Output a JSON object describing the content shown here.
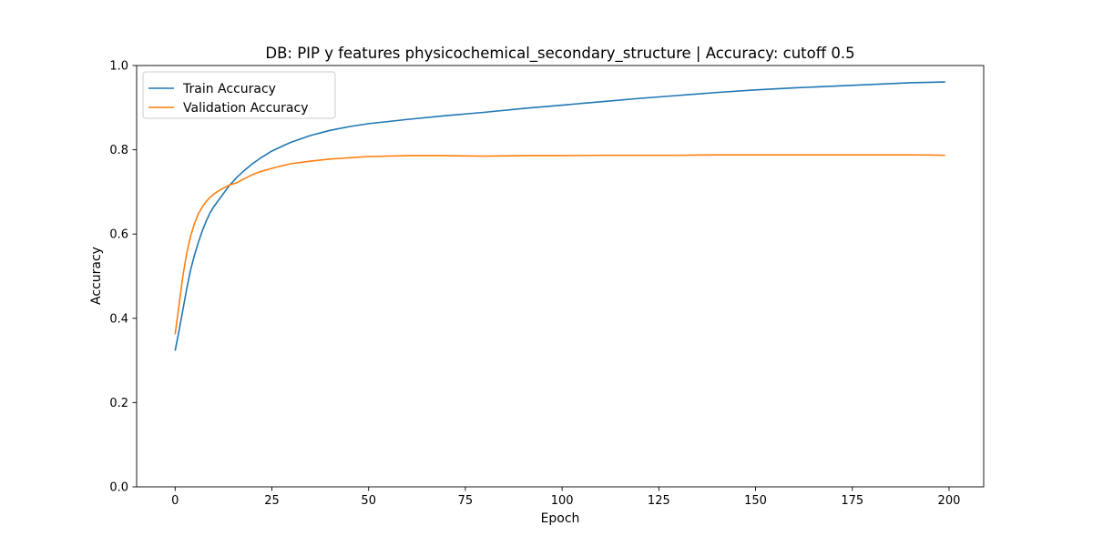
{
  "chart_data": {
    "type": "line",
    "title": "DB: PIP y features physicochemical_secondary_structure | Accuracy: cutoff 0.5",
    "xlabel": "Epoch",
    "ylabel": "Accuracy",
    "xlim": [
      -9.95,
      208.95
    ],
    "ylim": [
      0.0,
      1.0
    ],
    "xticks": [
      0,
      25,
      50,
      75,
      100,
      125,
      150,
      175,
      200
    ],
    "yticks": [
      0.0,
      0.2,
      0.4,
      0.6,
      0.8,
      1.0
    ],
    "xtick_labels": [
      "0",
      "25",
      "50",
      "75",
      "100",
      "125",
      "150",
      "175",
      "200"
    ],
    "ytick_labels": [
      "0.0",
      "0.2",
      "0.4",
      "0.6",
      "0.8",
      "1.0"
    ],
    "grid": false,
    "legend_position": "top-left",
    "series": [
      {
        "name": "Train Accuracy",
        "color": "#1f77b4",
        "x": [
          0,
          1,
          2,
          3,
          4,
          5,
          6,
          7,
          8,
          9,
          10,
          12,
          14,
          16,
          18,
          20,
          22,
          25,
          28,
          30,
          35,
          40,
          45,
          50,
          60,
          70,
          80,
          90,
          100,
          110,
          120,
          130,
          140,
          150,
          160,
          170,
          180,
          190,
          199
        ],
        "y": [
          0.323,
          0.37,
          0.42,
          0.47,
          0.515,
          0.55,
          0.58,
          0.607,
          0.63,
          0.65,
          0.665,
          0.69,
          0.715,
          0.735,
          0.752,
          0.767,
          0.78,
          0.797,
          0.81,
          0.818,
          0.834,
          0.846,
          0.855,
          0.862,
          0.872,
          0.881,
          0.889,
          0.898,
          0.906,
          0.914,
          0.922,
          0.929,
          0.936,
          0.942,
          0.947,
          0.951,
          0.955,
          0.959,
          0.961
        ]
      },
      {
        "name": "Validation Accuracy",
        "color": "#ff7f0e",
        "x": [
          0,
          1,
          2,
          3,
          4,
          5,
          6,
          7,
          8,
          9,
          10,
          12,
          14,
          16,
          18,
          20,
          22,
          25,
          28,
          30,
          35,
          40,
          45,
          50,
          60,
          70,
          80,
          90,
          100,
          110,
          120,
          130,
          140,
          150,
          160,
          170,
          180,
          190,
          199
        ],
        "y": [
          0.362,
          0.43,
          0.5,
          0.555,
          0.595,
          0.625,
          0.648,
          0.664,
          0.677,
          0.687,
          0.695,
          0.707,
          0.716,
          0.722,
          0.732,
          0.741,
          0.748,
          0.756,
          0.763,
          0.767,
          0.773,
          0.778,
          0.781,
          0.784,
          0.786,
          0.786,
          0.785,
          0.786,
          0.786,
          0.787,
          0.787,
          0.787,
          0.788,
          0.788,
          0.788,
          0.788,
          0.788,
          0.788,
          0.787
        ]
      }
    ]
  }
}
